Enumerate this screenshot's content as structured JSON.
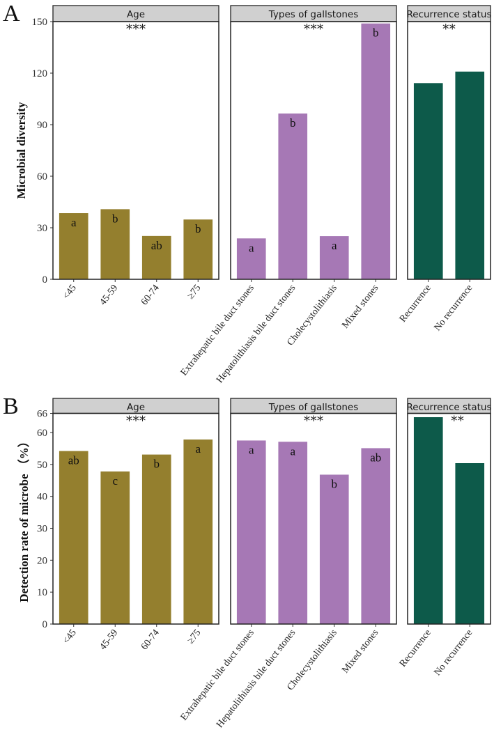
{
  "chart_data": [
    {
      "type": "bar",
      "panel_label": "A",
      "ylabel": "Microbial diversity",
      "ylim": [
        0,
        150
      ],
      "yticks": [
        0,
        30,
        60,
        90,
        120,
        150
      ],
      "grid": false,
      "facets": [
        {
          "title": "Age",
          "significance": "***",
          "color": "#947f2e",
          "categories": [
            "<45",
            "45-59",
            "60-74",
            "≥75"
          ],
          "values": [
            38.5,
            40.8,
            25.2,
            34.8
          ],
          "letters": [
            "a",
            "b",
            "ab",
            "b"
          ]
        },
        {
          "title": "Types of gallstones",
          "significance": "***",
          "color": "#a678b5",
          "categories": [
            "Extrahepatic bile duct stones",
            "Hepatolithiasis bile duct stones",
            "Cholecystolithiasis",
            "Mixed stones"
          ],
          "values": [
            23.8,
            96.5,
            25.1,
            148.9
          ],
          "letters": [
            "a",
            "b",
            "a",
            "b"
          ]
        },
        {
          "title": "Recurrence status",
          "significance": "**",
          "color": "#0d5a4a",
          "categories": [
            "Recurrence",
            "No recurrence"
          ],
          "values": [
            114.2,
            120.9
          ],
          "letters": [
            "",
            ""
          ]
        }
      ]
    },
    {
      "type": "bar",
      "panel_label": "B",
      "ylabel": "Detection rate of microbe （%）",
      "ylim": [
        0,
        66
      ],
      "yticks": [
        0,
        10,
        20,
        30,
        40,
        50,
        60,
        66
      ],
      "grid": false,
      "facets": [
        {
          "title": "Age",
          "significance": "***",
          "color": "#947f2e",
          "categories": [
            "<45",
            "45-59",
            "60-74",
            "≥75"
          ],
          "values": [
            54.2,
            47.8,
            53.1,
            57.8
          ],
          "letters": [
            "ab",
            "c",
            "b",
            "a"
          ]
        },
        {
          "title": "Types of gallstones",
          "significance": "***",
          "color": "#a678b5",
          "categories": [
            "Extrahepatic bile duct stones",
            "Hepatolithiasis bile duct stones",
            "Cholecystolithiasis",
            "Mixed stones"
          ],
          "values": [
            57.5,
            57.1,
            46.8,
            55.1
          ],
          "letters": [
            "a",
            "a",
            "b",
            "ab"
          ]
        },
        {
          "title": "Recurrence status",
          "significance": "**",
          "color": "#0d5a4a",
          "categories": [
            "Recurrence",
            "No recurrence"
          ],
          "values": [
            64.8,
            50.4
          ],
          "letters": [
            "",
            ""
          ]
        }
      ]
    }
  ]
}
